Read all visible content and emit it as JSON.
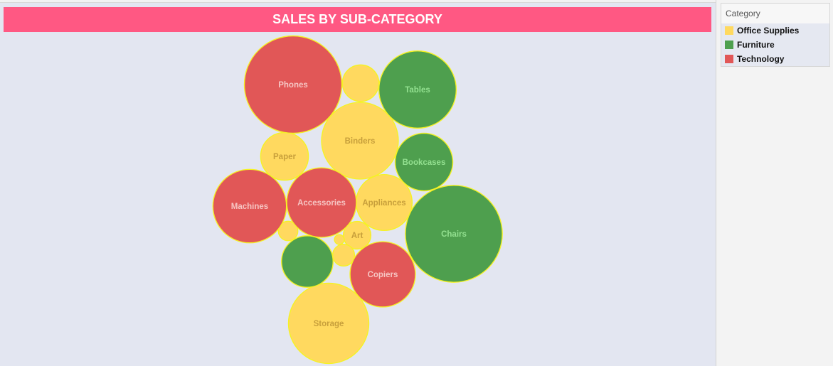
{
  "chart_data": {
    "type": "scatter",
    "title": "SALES BY SUB-CATEGORY",
    "legend_title": "Category",
    "legend_position": "right",
    "series": [
      {
        "name": "Office Supplies",
        "color": "#ffd95f",
        "label_color": "#c79f3b",
        "points": [
          {
            "label": "Binders",
            "value": 62
          },
          {
            "label": "Storage",
            "value": 68
          },
          {
            "label": "Paper",
            "value": 24
          },
          {
            "label": "Appliances",
            "value": 33
          },
          {
            "label": "Art",
            "value": 8
          },
          {
            "value": 14
          },
          {
            "value": 5
          },
          {
            "value": 4
          },
          {
            "value": 1
          }
        ]
      },
      {
        "name": "Furniture",
        "color": "#4e9f4e",
        "label_color": "#93e090",
        "points": [
          {
            "label": "Chairs",
            "value": 99
          },
          {
            "label": "Tables",
            "value": 63
          },
          {
            "label": "Bookcases",
            "value": 35
          },
          {
            "value": 28
          }
        ]
      },
      {
        "name": "Technology",
        "color": "#e15757",
        "label_color": "#f6c5c3",
        "points": [
          {
            "label": "Phones",
            "value": 100
          },
          {
            "label": "Machines",
            "value": 57
          },
          {
            "label": "Accessories",
            "value": 51
          },
          {
            "label": "Copiers",
            "value": 45
          }
        ]
      }
    ]
  }
}
